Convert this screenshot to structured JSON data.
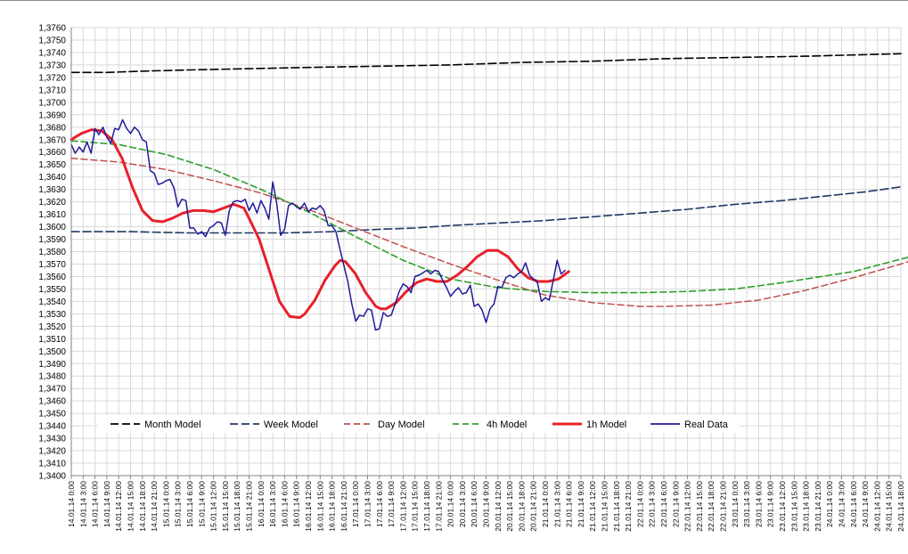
{
  "chart_data": {
    "type": "line",
    "title": "",
    "xlabel": "",
    "ylabel": "",
    "ylim": [
      1.34,
      1.376
    ],
    "y_step": 0.001,
    "y_tick_decimals": 4,
    "decimal_separator": ",",
    "grid": true,
    "legend_position": "bottom-inside",
    "x_tick_labels": [
      "14.01.14 0:00",
      "14.01.14 3:00",
      "14.01.14 6:00",
      "14.01.14 9:00",
      "14.01.14 12:00",
      "14.01.14 15:00",
      "14.01.14 18:00",
      "14.01.14 21:00",
      "15.01.14 0:00",
      "15.01.14 3:00",
      "15.01.14 6:00",
      "15.01.14 9:00",
      "15.01.14 12:00",
      "15.01.14 15:00",
      "15.01.14 18:00",
      "15.01.14 21:00",
      "16.01.14 0:00",
      "16.01.14 3:00",
      "16.01.14 6:00",
      "16.01.14 9:00",
      "16.01.14 12:00",
      "16.01.14 15:00",
      "16.01.14 18:00",
      "16.01.14 21:00",
      "17.01.14 0:00",
      "17.01.14 3:00",
      "17.01.14 6:00",
      "17.01.14 9:00",
      "17.01.14 12:00",
      "17.01.14 15:00",
      "17.01.14 18:00",
      "17.01.14 21:00",
      "20.01.14 0:00",
      "20.01.14 3:00",
      "20.01.14 6:00",
      "20.01.14 9:00",
      "20.01.14 12:00",
      "20.01.14 15:00",
      "20.01.14 18:00",
      "20.01.14 21:00",
      "21.01.14 0:00",
      "21.01.14 3:00",
      "21.01.14 6:00",
      "21.01.14 9:00",
      "21.01.14 12:00",
      "21.01.14 15:00",
      "21.01.14 18:00",
      "21.01.14 21:00",
      "22.01.14 0:00",
      "22.01.14 3:00",
      "22.01.14 6:00",
      "22.01.14 9:00",
      "22.01.14 12:00",
      "22.01.14 15:00",
      "22.01.14 18:00",
      "22.01.14 21:00",
      "23.01.14 0:00",
      "23.01.14 3:00",
      "23.01.14 6:00",
      "23.01.14 9:00",
      "23.01.14 12:00",
      "23.01.14 15:00",
      "23.01.14 18:00",
      "23.01.14 21:00",
      "24.01.14 0:00",
      "24.01.14 3:00",
      "24.01.14 6:00",
      "24.01.14 9:00",
      "24.01.14 12:00",
      "24.01.14 15:00",
      "24.01.14 18:00"
    ],
    "series": [
      {
        "name": "Month Model",
        "color": "#000000",
        "dash": "long",
        "points": [
          [
            0,
            1.3724
          ],
          [
            3,
            1.3724
          ],
          [
            6,
            1.3725
          ],
          [
            10,
            1.3726
          ],
          [
            15,
            1.3727
          ],
          [
            20,
            1.3728
          ],
          [
            26,
            1.3729
          ],
          [
            32,
            1.373
          ],
          [
            38,
            1.3732
          ],
          [
            44,
            1.3733
          ],
          [
            50,
            1.3735
          ],
          [
            56,
            1.3736
          ],
          [
            62,
            1.3737
          ],
          [
            66,
            1.3738
          ],
          [
            70,
            1.3739
          ]
        ]
      },
      {
        "name": "Week Model",
        "color": "#1f3864",
        "dash": "long",
        "points": [
          [
            0,
            1.3596
          ],
          [
            5,
            1.3596
          ],
          [
            10,
            1.3595
          ],
          [
            18,
            1.3595
          ],
          [
            22,
            1.3596
          ],
          [
            26,
            1.3598
          ],
          [
            29,
            1.3599
          ],
          [
            32,
            1.3601
          ],
          [
            36,
            1.3603
          ],
          [
            40,
            1.3605
          ],
          [
            44,
            1.3608
          ],
          [
            48,
            1.3611
          ],
          [
            52,
            1.3614
          ],
          [
            56,
            1.3618
          ],
          [
            60,
            1.3621
          ],
          [
            64,
            1.3625
          ],
          [
            67,
            1.3628
          ],
          [
            70,
            1.3632
          ]
        ]
      },
      {
        "name": "Day Model",
        "color": "#c0504d",
        "dash": "medium",
        "points": [
          [
            0,
            1.3655
          ],
          [
            4,
            1.3652
          ],
          [
            8,
            1.3646
          ],
          [
            12,
            1.3637
          ],
          [
            16,
            1.3627
          ],
          [
            20,
            1.3614
          ],
          [
            24,
            1.3599
          ],
          [
            28,
            1.3584
          ],
          [
            32,
            1.357
          ],
          [
            36,
            1.3557
          ],
          [
            40,
            1.3545
          ],
          [
            44,
            1.3539
          ],
          [
            48,
            1.3536
          ],
          [
            50,
            1.3536
          ],
          [
            54,
            1.3537
          ],
          [
            58,
            1.3541
          ],
          [
            62,
            1.3549
          ],
          [
            66,
            1.3559
          ],
          [
            70,
            1.357
          ],
          [
            74,
            1.3582
          ],
          [
            80,
            1.3592
          ]
        ]
      },
      {
        "name": "4h Model",
        "color": "#2ca02c",
        "dash": "medium",
        "points": [
          [
            0,
            1.3669
          ],
          [
            4,
            1.3666
          ],
          [
            8,
            1.3658
          ],
          [
            12,
            1.3646
          ],
          [
            16,
            1.363
          ],
          [
            20,
            1.3612
          ],
          [
            24,
            1.3592
          ],
          [
            28,
            1.3573
          ],
          [
            32,
            1.3558
          ],
          [
            36,
            1.3551
          ],
          [
            40,
            1.3548
          ],
          [
            44,
            1.3547
          ],
          [
            48,
            1.3547
          ],
          [
            52,
            1.3548
          ],
          [
            56,
            1.355
          ],
          [
            60,
            1.3555
          ],
          [
            64,
            1.3561
          ],
          [
            66,
            1.3564
          ],
          [
            70,
            1.3574
          ],
          [
            74,
            1.3583
          ],
          [
            78,
            1.3588
          ],
          [
            80,
            1.3592
          ]
        ]
      },
      {
        "name": "1h Model",
        "color": "#e8202a",
        "dash": "solid",
        "points": [
          [
            0,
            1.367
          ],
          [
            2,
            1.3675
          ],
          [
            4,
            1.3678
          ],
          [
            6,
            1.3677
          ],
          [
            8,
            1.367
          ],
          [
            10,
            1.3655
          ],
          [
            12,
            1.3632
          ],
          [
            14,
            1.3613
          ],
          [
            16,
            1.3605
          ],
          [
            18,
            1.3604
          ],
          [
            20,
            1.3607
          ],
          [
            22,
            1.3611
          ],
          [
            24,
            1.3613
          ],
          [
            26,
            1.3613
          ],
          [
            28,
            1.3612
          ],
          [
            30,
            1.3615
          ],
          [
            32,
            1.3618
          ],
          [
            34,
            1.3615
          ],
          [
            35,
            1.3607
          ],
          [
            37,
            1.359
          ],
          [
            39,
            1.3565
          ],
          [
            41,
            1.354
          ],
          [
            43,
            1.3528
          ],
          [
            45,
            1.3527
          ],
          [
            46,
            1.353
          ],
          [
            48,
            1.3541
          ],
          [
            50,
            1.3557
          ],
          [
            52,
            1.3569
          ],
          [
            53,
            1.3573
          ],
          [
            54,
            1.3572
          ],
          [
            56,
            1.3562
          ],
          [
            58,
            1.3547
          ],
          [
            60,
            1.3536
          ],
          [
            61,
            1.3534
          ],
          [
            62,
            1.3534
          ],
          [
            64,
            1.3539
          ],
          [
            66,
            1.3548
          ],
          [
            68,
            1.3555
          ],
          [
            70,
            1.3558
          ],
          [
            72,
            1.3556
          ],
          [
            74,
            1.3556
          ],
          [
            76,
            1.3561
          ],
          [
            78,
            1.3568
          ],
          [
            80,
            1.3576
          ],
          [
            82,
            1.3581
          ],
          [
            84,
            1.3581
          ],
          [
            86,
            1.3576
          ],
          [
            88,
            1.3566
          ],
          [
            90,
            1.3559
          ],
          [
            92,
            1.3556
          ],
          [
            94,
            1.3556
          ],
          [
            96,
            1.3558
          ],
          [
            98,
            1.3564
          ]
        ]
      },
      {
        "name": "Real Data",
        "color": "#1f1a99",
        "dash": "solid",
        "points": [
          [
            0,
            1.3666
          ],
          [
            1,
            1.3659
          ],
          [
            2,
            1.3664
          ],
          [
            3,
            1.366
          ],
          [
            4,
            1.3668
          ],
          [
            5,
            1.3659
          ],
          [
            6,
            1.3679
          ],
          [
            7,
            1.3674
          ],
          [
            8,
            1.368
          ],
          [
            9,
            1.3672
          ],
          [
            10,
            1.3667
          ],
          [
            11,
            1.3679
          ],
          [
            12,
            1.3678
          ],
          [
            13,
            1.3686
          ],
          [
            14,
            1.3679
          ],
          [
            15,
            1.3675
          ],
          [
            16,
            1.368
          ],
          [
            17,
            1.3677
          ],
          [
            18,
            1.367
          ],
          [
            19,
            1.3668
          ],
          [
            20,
            1.3645
          ],
          [
            21,
            1.3643
          ],
          [
            22,
            1.3634
          ],
          [
            23,
            1.3635
          ],
          [
            24,
            1.3637
          ],
          [
            25,
            1.3638
          ],
          [
            26,
            1.3631
          ],
          [
            27,
            1.3616
          ],
          [
            28,
            1.3622
          ],
          [
            29,
            1.3621
          ],
          [
            30,
            1.3599
          ],
          [
            31,
            1.3599
          ],
          [
            32,
            1.3594
          ],
          [
            33,
            1.3596
          ],
          [
            34,
            1.3592
          ],
          [
            35,
            1.3599
          ],
          [
            36,
            1.3601
          ],
          [
            37,
            1.3604
          ],
          [
            38,
            1.3603
          ],
          [
            39,
            1.3593
          ],
          [
            40,
            1.3613
          ],
          [
            41,
            1.362
          ],
          [
            42,
            1.3621
          ],
          [
            43,
            1.362
          ],
          [
            44,
            1.3622
          ],
          [
            45,
            1.3613
          ],
          [
            46,
            1.3619
          ],
          [
            47,
            1.3611
          ],
          [
            48,
            1.3621
          ],
          [
            49,
            1.3615
          ],
          [
            50,
            1.3606
          ],
          [
            51,
            1.3636
          ],
          [
            52,
            1.3619
          ],
          [
            53,
            1.3593
          ],
          [
            54,
            1.3598
          ],
          [
            55,
            1.3617
          ],
          [
            56,
            1.3619
          ],
          [
            57,
            1.3616
          ],
          [
            58,
            1.3614
          ],
          [
            59,
            1.3619
          ],
          [
            60,
            1.3612
          ],
          [
            61,
            1.3615
          ],
          [
            62,
            1.3614
          ],
          [
            63,
            1.3617
          ],
          [
            64,
            1.3613
          ],
          [
            65,
            1.3601
          ],
          [
            66,
            1.3601
          ],
          [
            67,
            1.3596
          ],
          [
            68,
            1.3582
          ],
          [
            69,
            1.3569
          ],
          [
            70,
            1.3556
          ],
          [
            71,
            1.3538
          ],
          [
            72,
            1.3524
          ],
          [
            73,
            1.3529
          ],
          [
            74,
            1.3528
          ],
          [
            75,
            1.3534
          ],
          [
            76,
            1.3533
          ],
          [
            77,
            1.3517
          ],
          [
            78,
            1.3518
          ],
          [
            79,
            1.3531
          ],
          [
            80,
            1.3528
          ],
          [
            81,
            1.3529
          ],
          [
            82,
            1.3538
          ],
          [
            83,
            1.3548
          ],
          [
            84,
            1.3554
          ],
          [
            85,
            1.3552
          ],
          [
            86,
            1.3547
          ],
          [
            87,
            1.356
          ],
          [
            88,
            1.3561
          ],
          [
            89,
            1.3563
          ],
          [
            90,
            1.3565
          ],
          [
            91,
            1.3562
          ],
          [
            92,
            1.3565
          ],
          [
            93,
            1.3564
          ],
          [
            94,
            1.3557
          ],
          [
            95,
            1.3551
          ],
          [
            96,
            1.3544
          ],
          [
            97,
            1.3548
          ],
          [
            98,
            1.3551
          ],
          [
            99,
            1.3546
          ],
          [
            100,
            1.3547
          ],
          [
            101,
            1.3553
          ],
          [
            102,
            1.3536
          ],
          [
            103,
            1.3538
          ],
          [
            104,
            1.3533
          ],
          [
            105,
            1.3523
          ],
          [
            106,
            1.3534
          ],
          [
            107,
            1.3538
          ],
          [
            108,
            1.3552
          ],
          [
            109,
            1.3551
          ],
          [
            110,
            1.3559
          ],
          [
            111,
            1.3561
          ],
          [
            112,
            1.3559
          ],
          [
            113,
            1.3562
          ],
          [
            114,
            1.3564
          ],
          [
            115,
            1.3571
          ],
          [
            116,
            1.3561
          ],
          [
            117,
            1.3558
          ],
          [
            118,
            1.3555
          ],
          [
            119,
            1.354
          ],
          [
            120,
            1.3543
          ],
          [
            121,
            1.3541
          ],
          [
            122,
            1.3557
          ],
          [
            123,
            1.3573
          ],
          [
            124,
            1.3562
          ],
          [
            125,
            1.3565
          ]
        ]
      }
    ]
  }
}
